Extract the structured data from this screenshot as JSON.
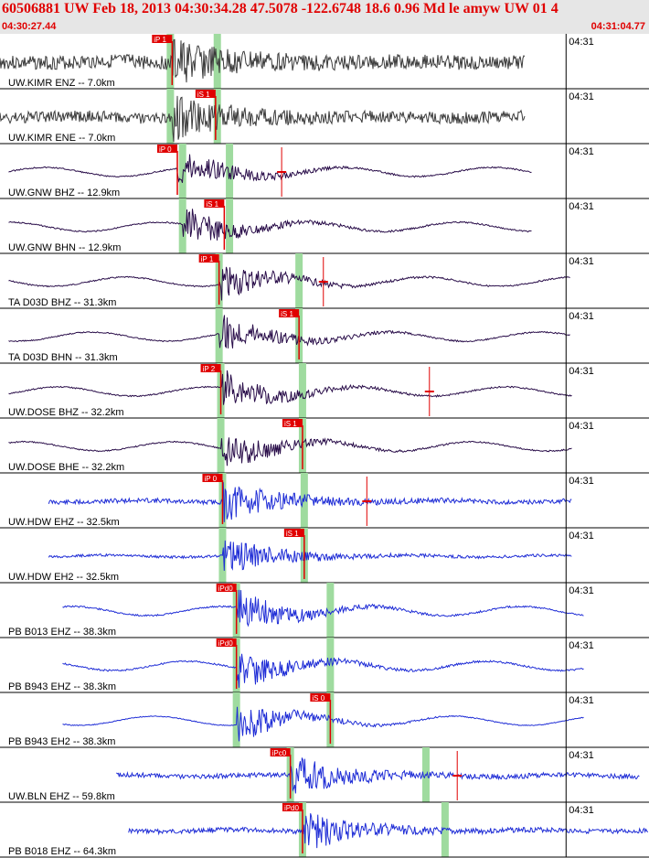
{
  "header": {
    "title": "60506881 UW Feb 18, 2013 04:30:34.28   47.5078 -122.6748 18.6 0.96 Md le amyw UW 01   4",
    "time_start": "04:30:27.44",
    "time_end": "04:31:04.77"
  },
  "colors": {
    "header_bg": "#e6e6e6",
    "header_text": "#e00000",
    "pick_marker": "#e00000",
    "pick_window": "#9fdb9f",
    "divider": "#000000"
  },
  "chart_data": {
    "type": "seismogram",
    "x_range_s": [
      0,
      37.33
    ],
    "time_tick_label": "04:31",
    "time_tick_at_s": 32.56,
    "traces": [
      {
        "label": "UW.KIMR ENZ -- 7.0km",
        "color": "#3a3a3a",
        "start_s": 0.0,
        "end_s": 30.2,
        "noise": 0.55,
        "pick": "iP 1",
        "pick_s": 9.9,
        "arrival_s": 9.9,
        "windows_s": [
          9.8,
          12.5
        ],
        "mark_s": null
      },
      {
        "label": "UW.KIMR ENE -- 7.0km",
        "color": "#3a3a3a",
        "start_s": 0.0,
        "end_s": 30.2,
        "noise": 0.45,
        "pick": "iS 1",
        "pick_s": 12.4,
        "arrival_s": 9.9,
        "windows_s": [
          9.8,
          12.5
        ],
        "mark_s": null
      },
      {
        "label": "UW.GNW BHZ -- 12.9km",
        "color": "#2a0e4a",
        "start_s": 0.5,
        "end_s": 30.6,
        "noise": 0.05,
        "pick": "iP 0",
        "pick_s": 10.2,
        "arrival_s": 10.2,
        "windows_s": [
          10.5,
          13.2
        ],
        "mark_s": 16.2
      },
      {
        "label": "UW.GNW BHN -- 12.9km",
        "color": "#2a0e4a",
        "start_s": 0.5,
        "end_s": 30.6,
        "noise": 0.05,
        "pick": "iS 1",
        "pick_s": 12.9,
        "arrival_s": 10.5,
        "windows_s": [
          10.5,
          13.2
        ],
        "mark_s": null
      },
      {
        "label": "TA D03D BHZ -- 31.3km",
        "color": "#2a0e4a",
        "start_s": 0.5,
        "end_s": 32.8,
        "noise": 0.05,
        "pick": "iP 1",
        "pick_s": 12.6,
        "arrival_s": 12.6,
        "windows_s": [
          12.6,
          17.2
        ],
        "mark_s": 18.6
      },
      {
        "label": "TA D03D BHN -- 31.3km",
        "color": "#2a0e4a",
        "start_s": 0.5,
        "end_s": 32.8,
        "noise": 0.05,
        "pick": "iS 1",
        "pick_s": 17.2,
        "arrival_s": 12.6,
        "windows_s": [
          12.6,
          17.2
        ],
        "mark_s": null
      },
      {
        "label": "UW.DOSE BHZ -- 32.2km",
        "color": "#2a0e4a",
        "start_s": 0.5,
        "end_s": 32.9,
        "noise": 0.05,
        "pick": "iP 2",
        "pick_s": 12.7,
        "arrival_s": 12.7,
        "windows_s": [
          12.7,
          17.4
        ],
        "mark_s": 24.7
      },
      {
        "label": "UW.DOSE BHE -- 32.2km",
        "color": "#2a0e4a",
        "start_s": 0.5,
        "end_s": 32.9,
        "noise": 0.05,
        "pick": "iS 1",
        "pick_s": 17.4,
        "arrival_s": 12.7,
        "windows_s": [
          12.7,
          17.4
        ],
        "mark_s": null
      },
      {
        "label": "UW.HDW EHZ -- 32.5km",
        "color": "#1f2dd6",
        "start_s": 2.8,
        "end_s": 32.9,
        "noise": 0.18,
        "pick": "iP 0",
        "pick_s": 12.8,
        "arrival_s": 12.8,
        "windows_s": [
          12.8,
          17.5
        ],
        "mark_s": 21.1
      },
      {
        "label": "UW.HDW EH2 -- 32.5km",
        "color": "#1f2dd6",
        "start_s": 2.8,
        "end_s": 32.9,
        "noise": 0.1,
        "pick": "iS 1",
        "pick_s": 17.5,
        "arrival_s": 12.8,
        "windows_s": [
          12.8,
          17.5
        ],
        "mark_s": null
      },
      {
        "label": "PB B013 EHZ -- 38.3km",
        "color": "#1f2dd6",
        "start_s": 3.6,
        "end_s": 33.6,
        "noise": 0.06,
        "pick": "iPd0",
        "pick_s": 13.6,
        "arrival_s": 13.6,
        "windows_s": [
          13.6,
          19.0
        ],
        "mark_s": null
      },
      {
        "label": "PB B943 EHZ -- 38.3km",
        "color": "#1f2dd6",
        "start_s": 3.6,
        "end_s": 33.6,
        "noise": 0.06,
        "pick": "iPd0",
        "pick_s": 13.6,
        "arrival_s": 13.6,
        "windows_s": [
          13.6,
          19.0
        ],
        "mark_s": null
      },
      {
        "label": "PB B943 EH2 -- 38.3km",
        "color": "#1f2dd6",
        "start_s": 3.6,
        "end_s": 33.6,
        "noise": 0.03,
        "pick": "iS 0",
        "pick_s": 19.0,
        "arrival_s": 13.6,
        "windows_s": [
          13.6,
          19.0
        ],
        "mark_s": null
      },
      {
        "label": "UW.BLN EHZ -- 59.8km",
        "color": "#1f2dd6",
        "start_s": 6.7,
        "end_s": 36.8,
        "noise": 0.18,
        "pick": "iPc0",
        "pick_s": 16.7,
        "arrival_s": 16.7,
        "windows_s": [
          16.7,
          24.5
        ],
        "mark_s": 26.3
      },
      {
        "label": "PB B018 EHZ -- 64.3km",
        "color": "#1f2dd6",
        "start_s": 7.4,
        "end_s": 37.3,
        "noise": 0.18,
        "pick": "iPd0",
        "pick_s": 17.4,
        "arrival_s": 17.4,
        "windows_s": [
          17.4,
          25.6
        ],
        "mark_s": null
      }
    ]
  }
}
